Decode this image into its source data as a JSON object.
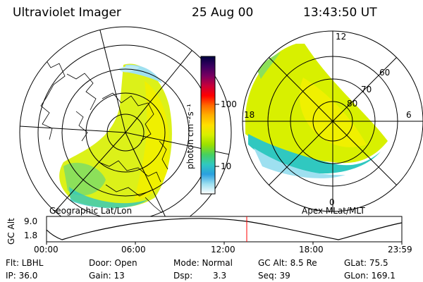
{
  "header": {
    "instrument": "Ultraviolet Imager",
    "date": "25 Aug 00",
    "time": "13:43:50 UT"
  },
  "colorbar": {
    "label": "photon cm⁻²s⁻¹",
    "ticks": [
      "100",
      "10"
    ],
    "colors": [
      "#000040",
      "#3a0060",
      "#7a0060",
      "#c8003a",
      "#ff0000",
      "#ff6a00",
      "#ffb000",
      "#ffe000",
      "#d8f000",
      "#9ae000",
      "#46d060",
      "#30c8c0",
      "#2aa0e0",
      "#9ee0f0",
      "#ffffff"
    ]
  },
  "left_panel": {
    "caption": "Geographic Lat/Lon"
  },
  "right_panel": {
    "caption": "Apex MLat/MLT",
    "ring_labels": [
      "60",
      "70",
      "80"
    ],
    "mlt_labels": {
      "top": "12",
      "left": "18",
      "right": "6",
      "bottom": "0"
    }
  },
  "altitude_plot": {
    "ylabel": "GC Alt",
    "yticks": [
      "9.0",
      "1.8"
    ],
    "xticks": [
      "00:00",
      "06:00",
      "12:00",
      "18:00",
      "23:59"
    ],
    "current_time_marker": "13:43:50"
  },
  "info": {
    "row1": {
      "flt": "Flt: LBHL",
      "door": "Door: Open",
      "mode": "Mode: Normal",
      "gc_alt": "GC Alt: 8.5 Re",
      "glat": "GLat: 75.5"
    },
    "row2": {
      "ip": "IP: 36.0",
      "gain": "Gain: 13",
      "dsp_label": "Dsp:",
      "dsp_value": "3.3",
      "seq": "Seq: 39",
      "glon": "GLon: 169.1"
    }
  }
}
